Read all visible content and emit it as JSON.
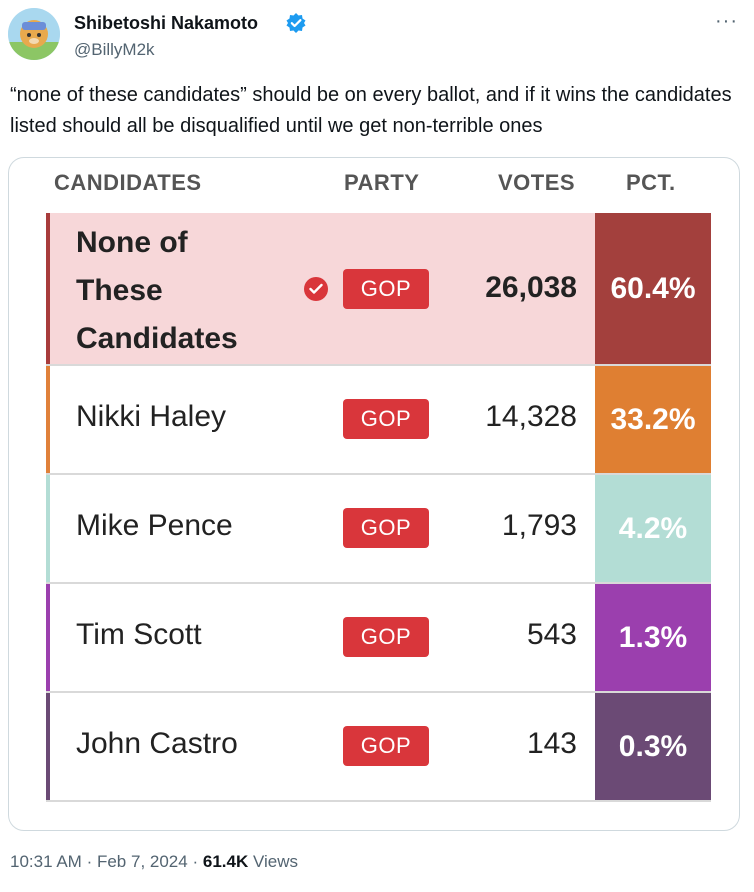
{
  "tweet": {
    "author_name": "Shibetoshi Nakamoto",
    "handle": "@BillyM2k",
    "more_icon": "more-horizontal-icon",
    "text": "“none of these candidates” should be on every ballot, and if it wins the candidates listed should all be disqualified until we get non-terrible ones",
    "time": "10:31 AM",
    "separator": "·",
    "date": "Feb 7, 2024",
    "views_count": "61.4K",
    "views_label": "Views"
  },
  "table": {
    "headers": {
      "candidates": "CANDIDATES",
      "party": "PARTY",
      "votes": "VOTES",
      "pct": "PCT."
    },
    "rows": [
      {
        "name": "None of These Candidates",
        "name_lines": [
          "None of",
          "These",
          "Candidates"
        ],
        "party": "GOP",
        "votes": "26,038",
        "pct": "60.4%",
        "winner": true,
        "accent": "#a83c3c",
        "pct_bg": "#a3403d"
      },
      {
        "name": "Nikki Haley",
        "party": "GOP",
        "votes": "14,328",
        "pct": "33.2%",
        "accent": "#e0813a",
        "pct_bg": "#df7f32"
      },
      {
        "name": "Mike Pence",
        "party": "GOP",
        "votes": "1,793",
        "pct": "4.2%",
        "accent": "#b3ddd5",
        "pct_bg": "#b3ddd5"
      },
      {
        "name": "Tim Scott",
        "party": "GOP",
        "votes": "543",
        "pct": "1.3%",
        "accent": "#9b3fae",
        "pct_bg": "#9b3fae"
      },
      {
        "name": "John Castro",
        "party": "GOP",
        "votes": "143",
        "pct": "0.3%",
        "accent": "#6b4a75",
        "pct_bg": "#6b4a75"
      }
    ]
  },
  "colors": {
    "party_badge": "#d9363b",
    "winner_row_bg": "#f7d7d9",
    "verified_blue": "#1d9bf0"
  }
}
